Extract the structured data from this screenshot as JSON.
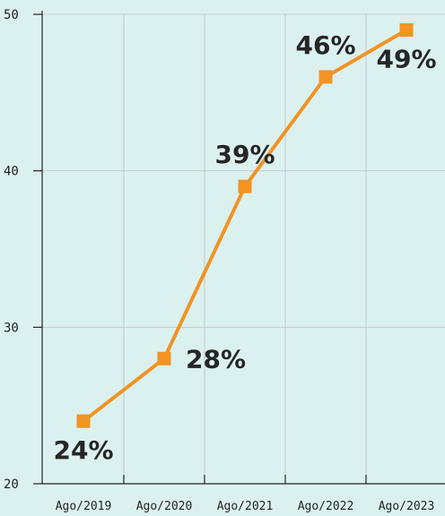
{
  "chart_data": {
    "type": "line",
    "title": "",
    "xlabel": "",
    "ylabel": "",
    "categories": [
      "Ago/2019",
      "Ago/2020",
      "Ago/2021",
      "Ago/2022",
      "Ago/2023"
    ],
    "series": [
      {
        "values": [
          24,
          28,
          39,
          46,
          49
        ],
        "color": "#f39323"
      }
    ],
    "data_labels": [
      "24%",
      "28%",
      "39%",
      "46%",
      "49%"
    ],
    "label_placement": [
      "below",
      "right",
      "above",
      "above",
      "below"
    ],
    "y_ticks": [
      "20",
      "30",
      "40",
      "50"
    ],
    "ylim": [
      20,
      50
    ],
    "grid": true,
    "marker": "square",
    "colors": {
      "background": "#dbf1f0",
      "grid": "#c4cbcb",
      "axis": "#222222",
      "text": "#262626"
    }
  }
}
